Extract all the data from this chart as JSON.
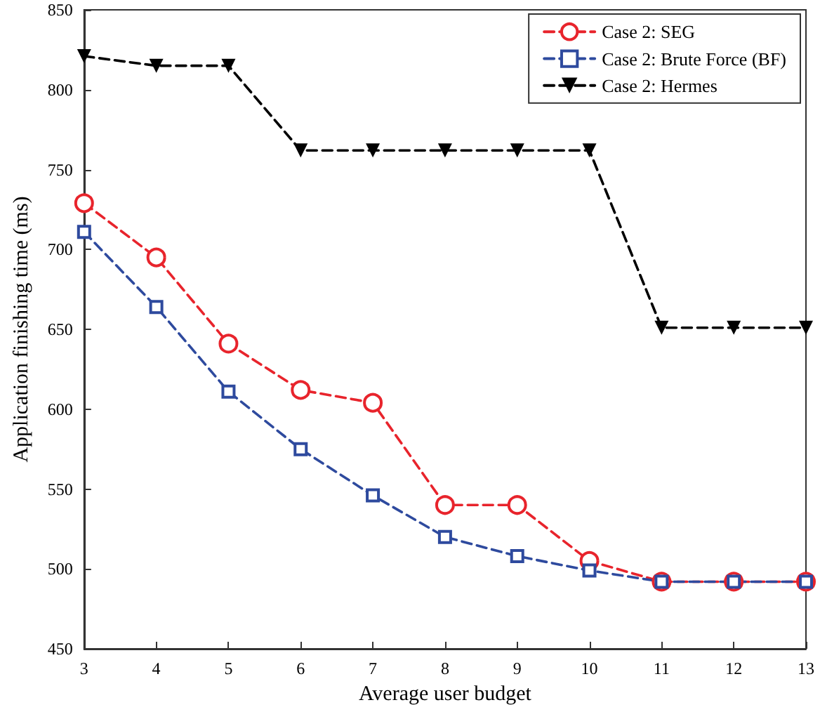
{
  "chart_data": {
    "type": "line",
    "xlabel": "Average user budget",
    "ylabel": "Application finishing time (ms)",
    "x": [
      3,
      4,
      5,
      6,
      7,
      8,
      9,
      10,
      11,
      12,
      13
    ],
    "series": [
      {
        "name": "Case 2: SEG",
        "color": "#e8242c",
        "marker": "circle",
        "line_style": "dashed",
        "values": [
          729,
          695,
          641,
          612,
          604,
          540,
          540,
          505,
          492,
          492,
          492
        ]
      },
      {
        "name": "Case 2: Brute Force (BF)",
        "color": "#2e4a9e",
        "marker": "square",
        "line_style": "dashed",
        "values": [
          711,
          664,
          611,
          575,
          546,
          520,
          508,
          499,
          492,
          492,
          492
        ]
      },
      {
        "name": "Case 2: Hermes",
        "color": "#000000",
        "marker": "triangle",
        "line_style": "dashed",
        "values": [
          821,
          815,
          815,
          762,
          762,
          762,
          762,
          762,
          651,
          651,
          651
        ]
      }
    ],
    "xlim": [
      3,
      13
    ],
    "xticks": [
      3,
      4,
      5,
      6,
      7,
      8,
      9,
      10,
      11,
      12,
      13
    ],
    "ylim": [
      450,
      850
    ],
    "yticks": [
      450,
      500,
      550,
      600,
      650,
      700,
      750,
      800,
      850
    ],
    "grid": false,
    "legend": "top right"
  }
}
